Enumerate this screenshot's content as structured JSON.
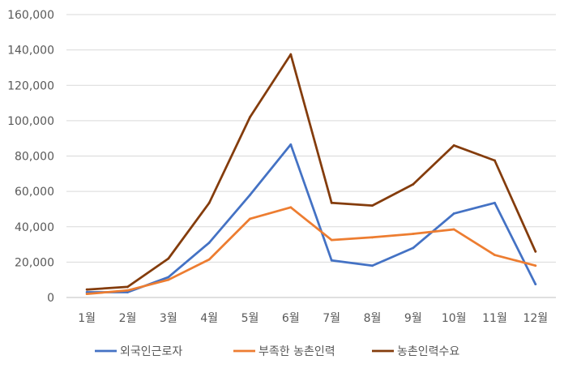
{
  "chart_data": {
    "type": "line",
    "categories": [
      "1월",
      "2월",
      "3월",
      "4월",
      "5월",
      "6월",
      "7월",
      "8월",
      "9월",
      "10월",
      "11월",
      "12월"
    ],
    "ylim": [
      0,
      160000
    ],
    "yticks": [
      0,
      20000,
      40000,
      60000,
      80000,
      100000,
      120000,
      140000,
      160000
    ],
    "ytick_labels": [
      "0",
      "20,000",
      "40,000",
      "60,000",
      "80,000",
      "100,000",
      "120,000",
      "140,000",
      "160,000"
    ],
    "grid": true,
    "legend_position": "bottom",
    "series": [
      {
        "name": "외국인근로자",
        "color": "#4472c4",
        "values": [
          3000,
          3000,
          11500,
          31000,
          58000,
          86500,
          21000,
          18000,
          28000,
          47500,
          53500,
          7500
        ]
      },
      {
        "name": "부족한 농촌인력",
        "color": "#ed7d31",
        "values": [
          2000,
          4000,
          10000,
          21500,
          44500,
          51000,
          32500,
          34000,
          36000,
          38500,
          24000,
          18000
        ]
      },
      {
        "name": "농촌인력수요",
        "color": "#843c0c",
        "values": [
          4500,
          6000,
          22000,
          53500,
          102000,
          137500,
          53500,
          52000,
          64000,
          86000,
          77500,
          26000
        ]
      }
    ]
  }
}
